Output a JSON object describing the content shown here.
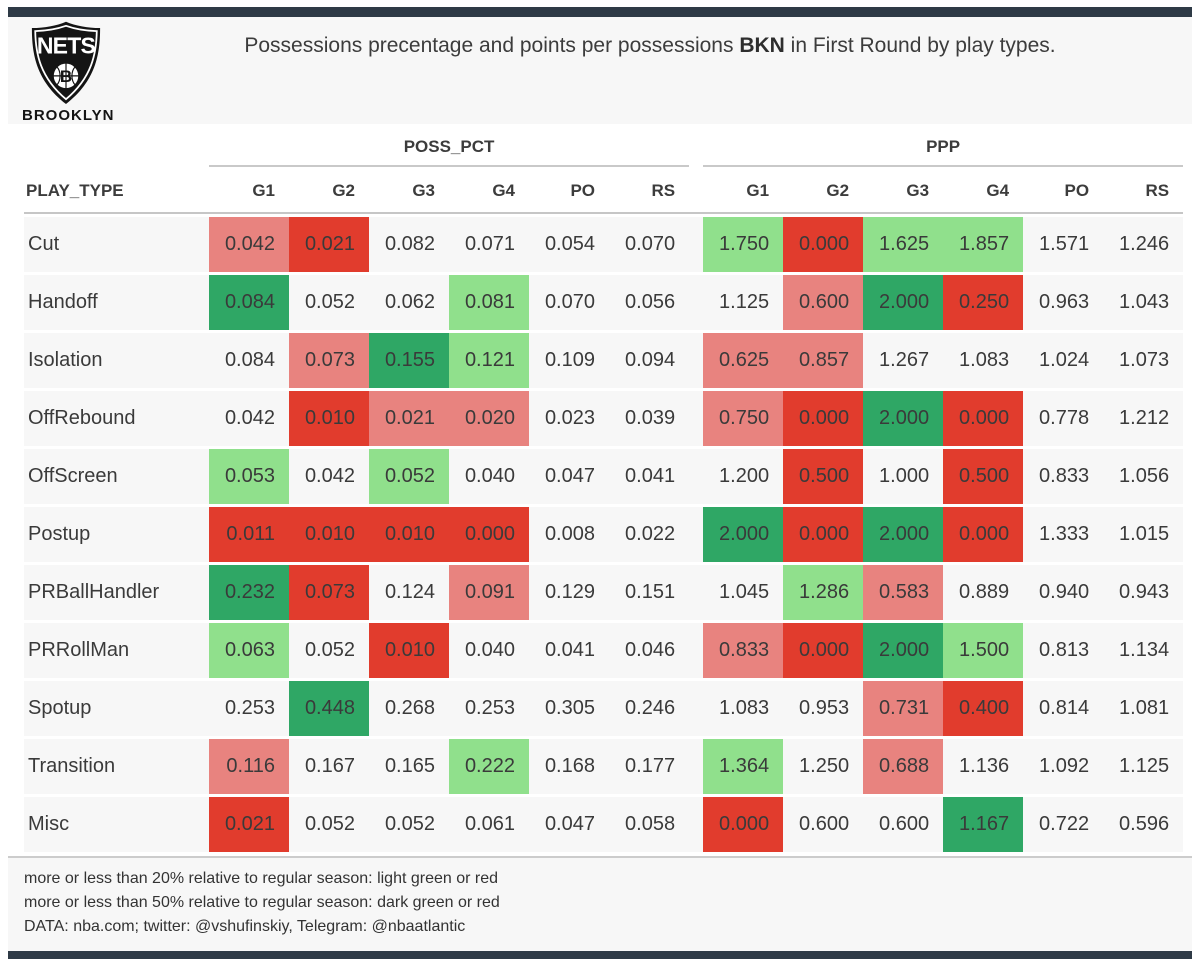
{
  "header": {
    "title": {
      "prefix": "Possessions precentage and points per possessions ",
      "team": "BKN",
      "suffix": " in First Round by play types."
    },
    "logo": {
      "team": "NETS",
      "ball_letter": "B",
      "city": "BROOKLYN"
    }
  },
  "colors": {
    "accent_bar": "#2e3a46",
    "light_green": "#90e08c",
    "dark_green": "#2fa765",
    "light_red": "#e8837f",
    "dark_red": "#e13c2d",
    "row_background": "#f7f7f7"
  },
  "chart_data": {
    "type": "table",
    "title": "Possessions precentage and points per possessions BKN in First Round by play types.",
    "row_header": "PLAY_TYPE",
    "groups": [
      {
        "label": "POSS_PCT"
      },
      {
        "label": "PPP"
      }
    ],
    "columns": [
      "G1",
      "G2",
      "G3",
      "G4",
      "PO",
      "RS"
    ],
    "rows": [
      {
        "play_type": "Cut",
        "poss_pct": [
          "0.042",
          "0.021",
          "0.082",
          "0.071",
          "0.054",
          "0.070"
        ],
        "poss_pct_highlight": [
          "light_red",
          "dark_red",
          null,
          null,
          null,
          null
        ],
        "ppp": [
          "1.750",
          "0.000",
          "1.625",
          "1.857",
          "1.571",
          "1.246"
        ],
        "ppp_highlight": [
          "light_green",
          "dark_red",
          "light_green",
          "light_green",
          null,
          null
        ]
      },
      {
        "play_type": "Handoff",
        "poss_pct": [
          "0.084",
          "0.052",
          "0.062",
          "0.081",
          "0.070",
          "0.056"
        ],
        "poss_pct_highlight": [
          "dark_green",
          null,
          null,
          "light_green",
          null,
          null
        ],
        "ppp": [
          "1.125",
          "0.600",
          "2.000",
          "0.250",
          "0.963",
          "1.043"
        ],
        "ppp_highlight": [
          null,
          "light_red",
          "dark_green",
          "dark_red",
          null,
          null
        ]
      },
      {
        "play_type": "Isolation",
        "poss_pct": [
          "0.084",
          "0.073",
          "0.155",
          "0.121",
          "0.109",
          "0.094"
        ],
        "poss_pct_highlight": [
          null,
          "light_red",
          "dark_green",
          "light_green",
          null,
          null
        ],
        "ppp": [
          "0.625",
          "0.857",
          "1.267",
          "1.083",
          "1.024",
          "1.073"
        ],
        "ppp_highlight": [
          "light_red",
          "light_red",
          null,
          null,
          null,
          null
        ]
      },
      {
        "play_type": "OffRebound",
        "poss_pct": [
          "0.042",
          "0.010",
          "0.021",
          "0.020",
          "0.023",
          "0.039"
        ],
        "poss_pct_highlight": [
          null,
          "dark_red",
          "light_red",
          "light_red",
          null,
          null
        ],
        "ppp": [
          "0.750",
          "0.000",
          "2.000",
          "0.000",
          "0.778",
          "1.212"
        ],
        "ppp_highlight": [
          "light_red",
          "dark_red",
          "dark_green",
          "dark_red",
          null,
          null
        ]
      },
      {
        "play_type": "OffScreen",
        "poss_pct": [
          "0.053",
          "0.042",
          "0.052",
          "0.040",
          "0.047",
          "0.041"
        ],
        "poss_pct_highlight": [
          "light_green",
          null,
          "light_green",
          null,
          null,
          null
        ],
        "ppp": [
          "1.200",
          "0.500",
          "1.000",
          "0.500",
          "0.833",
          "1.056"
        ],
        "ppp_highlight": [
          null,
          "dark_red",
          null,
          "dark_red",
          null,
          null
        ]
      },
      {
        "play_type": "Postup",
        "poss_pct": [
          "0.011",
          "0.010",
          "0.010",
          "0.000",
          "0.008",
          "0.022"
        ],
        "poss_pct_highlight": [
          "dark_red",
          "dark_red",
          "dark_red",
          "dark_red",
          null,
          null
        ],
        "ppp": [
          "2.000",
          "0.000",
          "2.000",
          "0.000",
          "1.333",
          "1.015"
        ],
        "ppp_highlight": [
          "dark_green",
          "dark_red",
          "dark_green",
          "dark_red",
          null,
          null
        ]
      },
      {
        "play_type": "PRBallHandler",
        "poss_pct": [
          "0.232",
          "0.073",
          "0.124",
          "0.091",
          "0.129",
          "0.151"
        ],
        "poss_pct_highlight": [
          "dark_green",
          "dark_red",
          null,
          "light_red",
          null,
          null
        ],
        "ppp": [
          "1.045",
          "1.286",
          "0.583",
          "0.889",
          "0.940",
          "0.943"
        ],
        "ppp_highlight": [
          null,
          "light_green",
          "light_red",
          null,
          null,
          null
        ]
      },
      {
        "play_type": "PRRollMan",
        "poss_pct": [
          "0.063",
          "0.052",
          "0.010",
          "0.040",
          "0.041",
          "0.046"
        ],
        "poss_pct_highlight": [
          "light_green",
          null,
          "dark_red",
          null,
          null,
          null
        ],
        "ppp": [
          "0.833",
          "0.000",
          "2.000",
          "1.500",
          "0.813",
          "1.134"
        ],
        "ppp_highlight": [
          "light_red",
          "dark_red",
          "dark_green",
          "light_green",
          null,
          null
        ]
      },
      {
        "play_type": "Spotup",
        "poss_pct": [
          "0.253",
          "0.448",
          "0.268",
          "0.253",
          "0.305",
          "0.246"
        ],
        "poss_pct_highlight": [
          null,
          "dark_green",
          null,
          null,
          null,
          null
        ],
        "ppp": [
          "1.083",
          "0.953",
          "0.731",
          "0.400",
          "0.814",
          "1.081"
        ],
        "ppp_highlight": [
          null,
          null,
          "light_red",
          "dark_red",
          null,
          null
        ]
      },
      {
        "play_type": "Transition",
        "poss_pct": [
          "0.116",
          "0.167",
          "0.165",
          "0.222",
          "0.168",
          "0.177"
        ],
        "poss_pct_highlight": [
          "light_red",
          null,
          null,
          "light_green",
          null,
          null
        ],
        "ppp": [
          "1.364",
          "1.250",
          "0.688",
          "1.136",
          "1.092",
          "1.125"
        ],
        "ppp_highlight": [
          "light_green",
          null,
          "light_red",
          null,
          null,
          null
        ]
      },
      {
        "play_type": "Misc",
        "poss_pct": [
          "0.021",
          "0.052",
          "0.052",
          "0.061",
          "0.047",
          "0.058"
        ],
        "poss_pct_highlight": [
          "dark_red",
          null,
          null,
          null,
          null,
          null
        ],
        "ppp": [
          "0.000",
          "0.600",
          "0.600",
          "1.167",
          "0.722",
          "0.596"
        ],
        "ppp_highlight": [
          "dark_red",
          null,
          null,
          "dark_green",
          null,
          null
        ]
      }
    ]
  },
  "footnotes": [
    "more or less than 20% relative to regular season: light green or red",
    "more or less than 50% relative to regular season: dark green or red",
    "DATA: nba.com; twitter: @vshufinskiy, Telegram: @nbaatlantic"
  ]
}
